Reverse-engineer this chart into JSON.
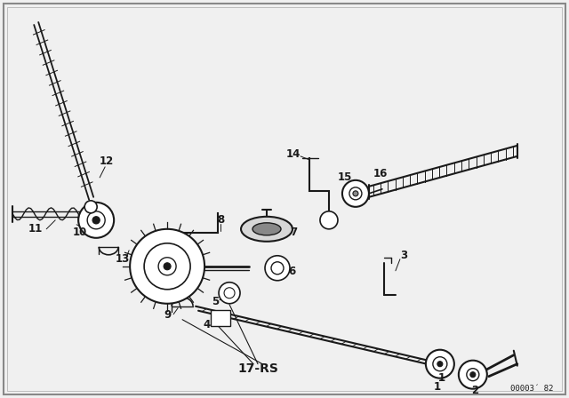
{
  "background_color": "#f0f0f0",
  "line_color": "#1a1a1a",
  "fig_width": 6.4,
  "fig_height": 4.48,
  "dpi": 100,
  "diagram_ref": "00003´ 82",
  "part_label": "17-RS",
  "border_color": "#c8c8c8"
}
